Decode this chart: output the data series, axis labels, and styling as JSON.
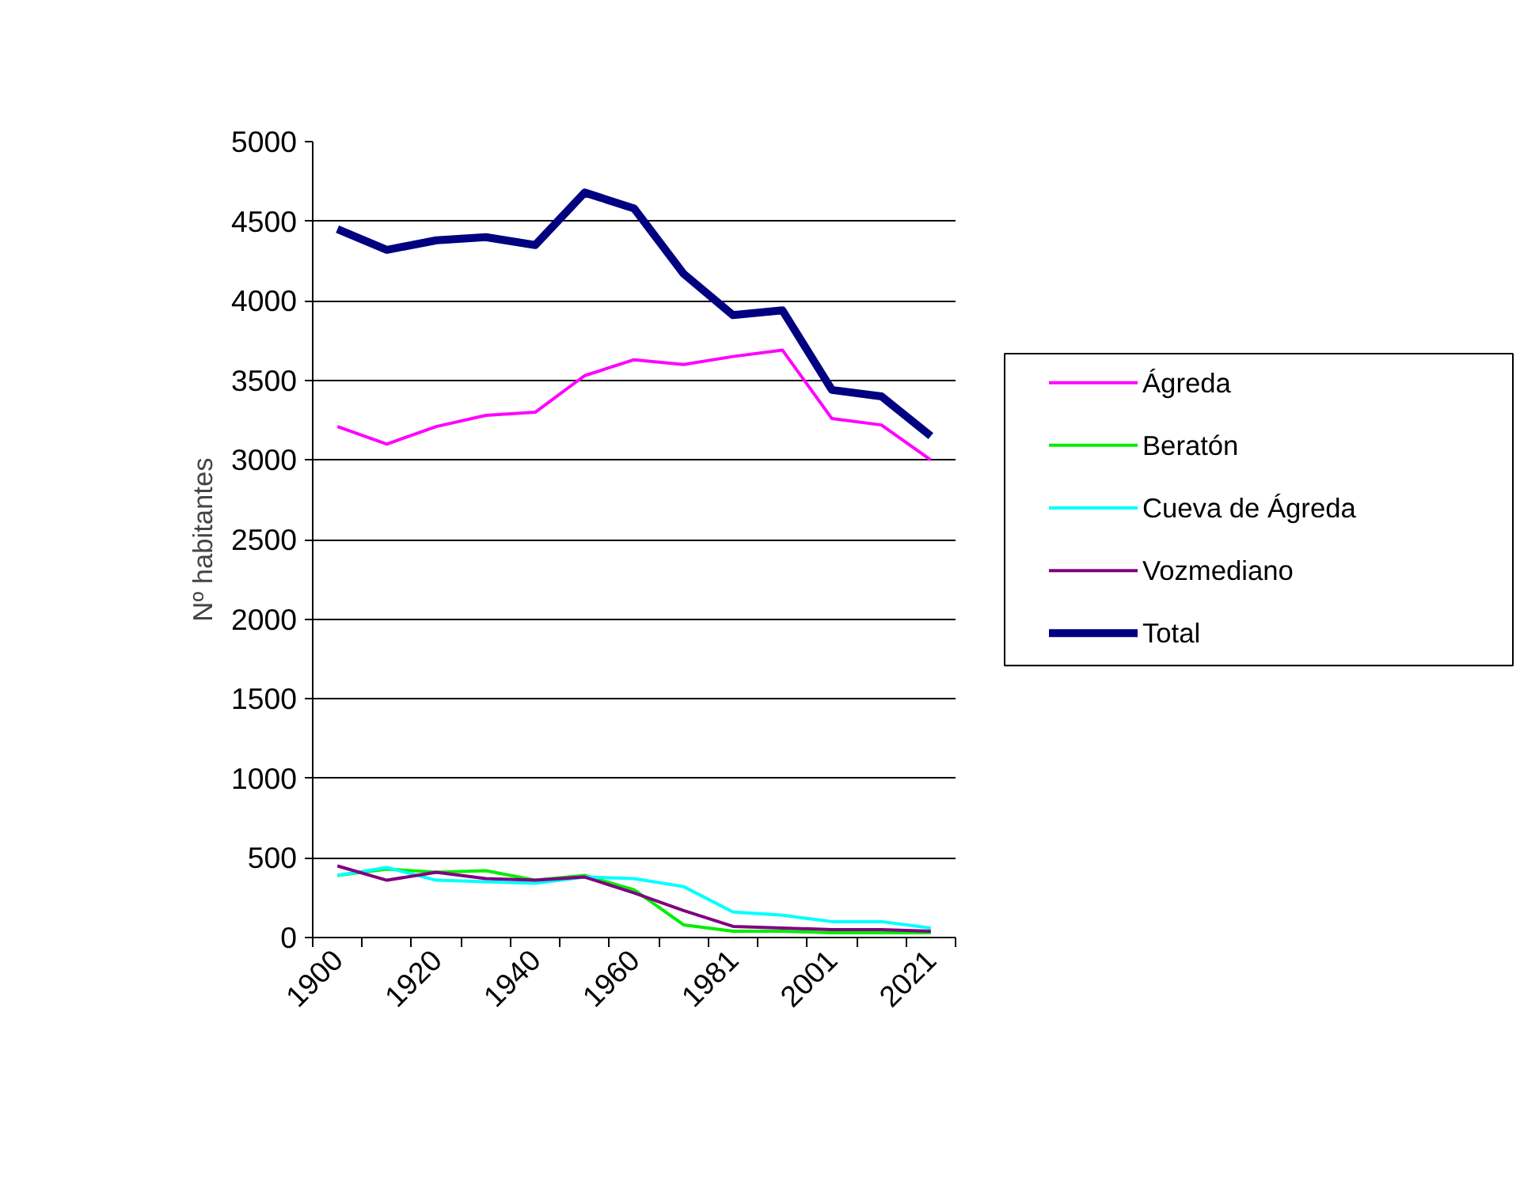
{
  "chart_data": {
    "type": "line",
    "ylabel": "Nº habitantes",
    "categories": [
      "1900",
      null,
      "1920",
      null,
      "1940",
      null,
      "1960",
      null,
      "1981",
      null,
      "2001",
      null,
      "2021"
    ],
    "series": [
      {
        "name": "Ágreda",
        "color": "#ff00ff",
        "values": [
          3210,
          3100,
          3210,
          3280,
          3300,
          3530,
          3630,
          3600,
          3650,
          3690,
          3260,
          3220,
          3000
        ]
      },
      {
        "name": "Beratón",
        "color": "#00ee00",
        "values": [
          390,
          430,
          410,
          420,
          360,
          390,
          300,
          80,
          40,
          40,
          30,
          30,
          30
        ]
      },
      {
        "name": "Cueva de Ágreda",
        "color": "#00ffff",
        "values": [
          390,
          440,
          360,
          350,
          340,
          380,
          370,
          320,
          160,
          140,
          100,
          100,
          60
        ]
      },
      {
        "name": "Vozmediano",
        "color": "#800080",
        "values": [
          450,
          360,
          410,
          370,
          360,
          380,
          280,
          170,
          70,
          60,
          50,
          50,
          40
        ]
      },
      {
        "name": "Total",
        "color": "#000080",
        "values": [
          4450,
          4320,
          4380,
          4400,
          4350,
          4680,
          4580,
          4170,
          3910,
          3940,
          3440,
          3400,
          3150
        ]
      }
    ],
    "ylim": [
      0,
      5000
    ],
    "yticks": [
      0,
      500,
      1000,
      1500,
      2000,
      2500,
      3000,
      3500,
      4000,
      4500,
      5000
    ],
    "grid": "y",
    "legend": "right",
    "marker": "none",
    "line_style": "solid"
  }
}
